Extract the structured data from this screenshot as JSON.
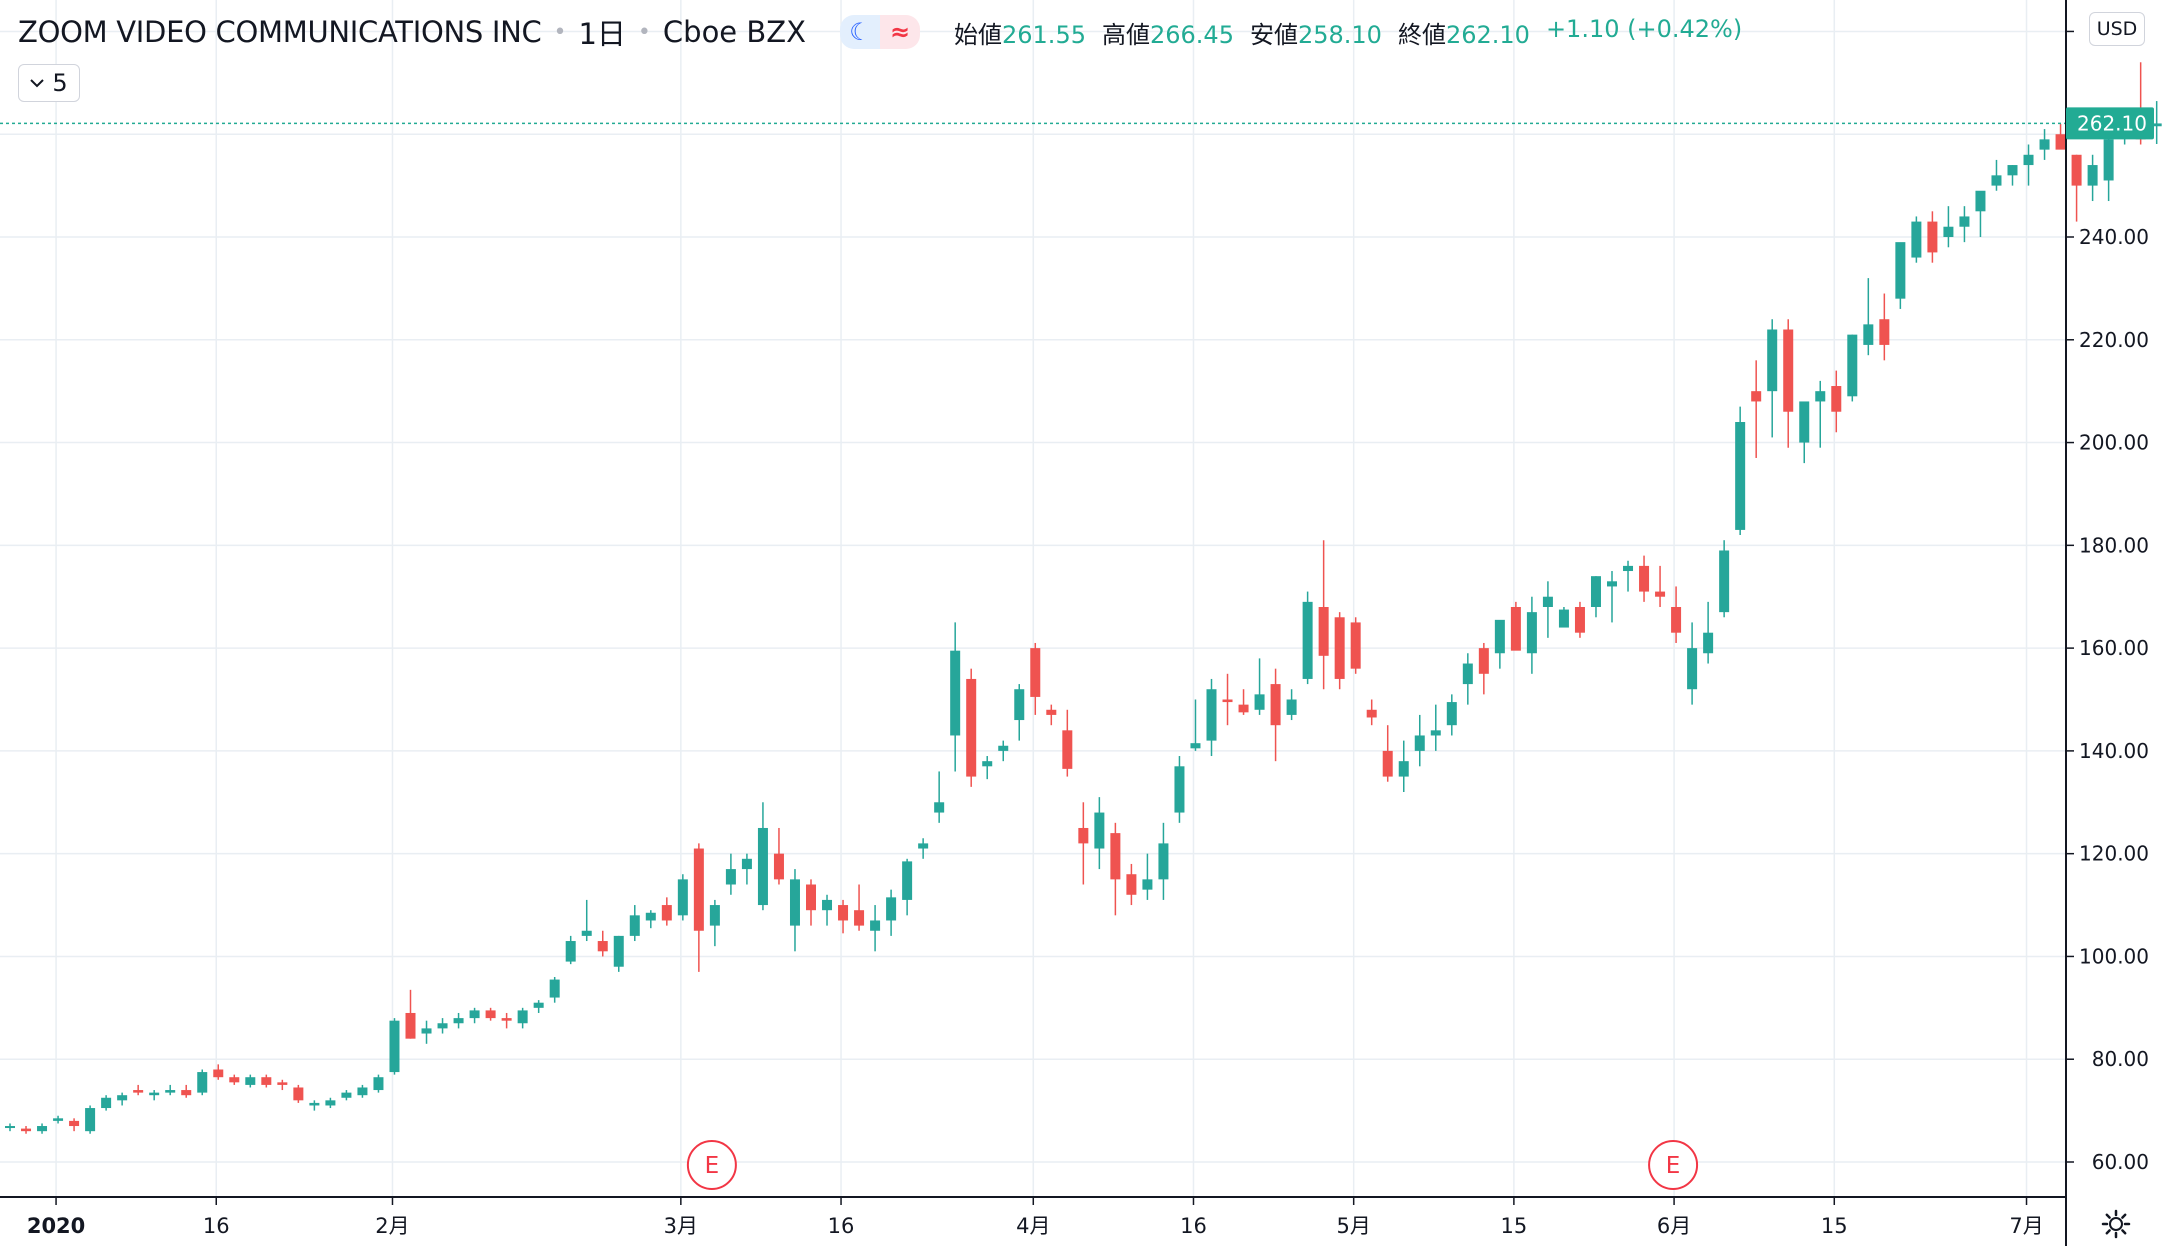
{
  "header": {
    "symbol_name": "ZOOM VIDEO COMMUNICATIONS INC",
    "interval": "1日",
    "exchange": "Cboe BZX",
    "mode_icons": [
      "moon-icon",
      "wave-icon"
    ],
    "ohlc": [
      {
        "label": "始値",
        "value": "261.55"
      },
      {
        "label": "高値",
        "value": "266.45"
      },
      {
        "label": "安値",
        "value": "258.10"
      },
      {
        "label": "終値",
        "value": "262.10"
      }
    ],
    "change": "+1.10 (+0.42%)"
  },
  "toolbar": {
    "interval_count": "5",
    "currency": "USD"
  },
  "last_price_label": "262.10",
  "earnings_marker": "E",
  "colors": {
    "up": "#26a69a",
    "down": "#ef5350",
    "grid": "#e9eef3",
    "axis": "#131722",
    "last_price": "#22ab94"
  },
  "chart_data": {
    "type": "candlestick",
    "y_axis": {
      "min": 55,
      "max": 285,
      "ticks": [
        "60.00",
        "80.00",
        "100.00",
        "120.00",
        "140.00",
        "160.00",
        "180.00",
        "200.00",
        "220.00",
        "240.00"
      ]
    },
    "x_axis": {
      "labels": [
        {
          "text": "2020",
          "index": 3,
          "bold": true
        },
        {
          "text": "16",
          "index": 13
        },
        {
          "text": "2月",
          "index": 24
        },
        {
          "text": "3月",
          "index": 42
        },
        {
          "text": "16",
          "index": 52
        },
        {
          "text": "4月",
          "index": 64
        },
        {
          "text": "16",
          "index": 74
        },
        {
          "text": "5月",
          "index": 84
        },
        {
          "text": "15",
          "index": 94
        },
        {
          "text": "6月",
          "index": 104
        },
        {
          "text": "15",
          "index": 114
        },
        {
          "text": "7月",
          "index": 126
        }
      ]
    },
    "earnings_indices": [
      44,
      104
    ],
    "last_price": 262.1,
    "ohlc": [
      [
        67,
        67.5,
        66,
        67
      ],
      [
        66.5,
        67,
        65.5,
        66
      ],
      [
        66,
        67.5,
        65.5,
        67
      ],
      [
        68,
        69,
        67.5,
        68.5
      ],
      [
        68,
        68.5,
        66,
        67
      ],
      [
        66,
        71,
        65.5,
        70.5
      ],
      [
        70.5,
        73,
        70,
        72.5
      ],
      [
        72,
        73.5,
        71,
        73
      ],
      [
        74,
        75,
        73,
        73.5
      ],
      [
        73,
        74,
        72,
        73.5
      ],
      [
        73.5,
        75,
        73,
        74
      ],
      [
        74,
        75,
        72.5,
        73
      ],
      [
        73.5,
        78,
        73,
        77.5
      ],
      [
        78,
        79,
        76,
        76.5
      ],
      [
        76.5,
        77,
        75,
        75.5
      ],
      [
        75,
        77,
        74.5,
        76.5
      ],
      [
        76.5,
        77,
        74.5,
        75
      ],
      [
        75.5,
        76,
        74,
        75
      ],
      [
        74.5,
        75,
        71.5,
        72
      ],
      [
        71,
        72,
        70,
        71.5
      ],
      [
        71,
        72.5,
        70.5,
        72
      ],
      [
        72.5,
        74,
        72,
        73.5
      ],
      [
        73,
        75,
        72.5,
        74.5
      ],
      [
        74,
        77,
        73.5,
        76.5
      ],
      [
        77.5,
        88,
        77,
        87.5
      ],
      [
        89,
        93.5,
        84,
        84
      ],
      [
        85,
        87.5,
        83,
        86
      ],
      [
        86,
        88,
        85,
        87
      ],
      [
        87,
        89,
        86,
        88
      ],
      [
        88,
        90,
        87,
        89.5
      ],
      [
        89.5,
        90,
        87.5,
        88
      ],
      [
        88,
        89,
        86,
        87.5
      ],
      [
        87,
        90,
        86,
        89.5
      ],
      [
        90,
        91.5,
        89,
        91
      ],
      [
        92,
        96,
        91,
        95.5
      ],
      [
        99,
        104,
        98.5,
        103
      ],
      [
        104,
        111,
        103,
        105
      ],
      [
        103,
        105,
        100,
        101
      ],
      [
        98,
        104,
        97,
        104
      ],
      [
        104,
        110,
        103,
        108
      ],
      [
        107,
        109,
        105.5,
        108.5
      ],
      [
        110,
        111.5,
        106,
        107
      ],
      [
        108,
        116,
        107,
        115
      ],
      [
        121,
        122,
        97,
        105
      ],
      [
        106,
        111,
        102,
        110
      ],
      [
        114,
        120,
        112,
        117
      ],
      [
        117,
        120,
        114,
        119
      ],
      [
        110,
        130,
        109,
        125
      ],
      [
        120,
        125,
        114,
        115
      ],
      [
        106,
        117,
        101,
        115
      ],
      [
        114,
        115,
        106,
        109
      ],
      [
        109,
        112,
        106,
        111
      ],
      [
        110,
        111,
        104.5,
        107
      ],
      [
        109,
        114,
        105,
        106
      ],
      [
        105,
        110,
        101,
        107
      ],
      [
        107,
        113,
        104,
        111.5
      ],
      [
        111,
        119,
        108,
        118.5
      ],
      [
        121,
        123,
        119,
        122
      ],
      [
        128,
        136,
        126,
        130
      ],
      [
        143,
        165,
        136,
        159.5
      ],
      [
        154,
        156,
        133,
        135
      ],
      [
        137,
        139,
        134.5,
        138
      ],
      [
        140,
        142,
        138,
        141
      ],
      [
        146,
        153,
        142,
        152
      ],
      [
        160,
        161,
        147,
        150.5
      ],
      [
        148,
        149,
        145,
        147
      ],
      [
        144,
        148,
        135,
        136.5
      ],
      [
        125,
        130,
        114,
        122
      ],
      [
        121,
        131,
        117,
        128
      ],
      [
        124,
        126,
        108,
        115
      ],
      [
        116,
        118,
        110,
        112
      ],
      [
        113,
        120,
        111,
        115
      ],
      [
        115,
        126,
        111,
        122
      ],
      [
        128,
        139,
        126,
        137
      ],
      [
        140.5,
        150,
        140,
        141.5
      ],
      [
        142,
        154,
        139,
        152
      ],
      [
        150,
        155,
        145,
        149.5
      ],
      [
        149,
        152,
        147,
        147.5
      ],
      [
        148,
        158,
        147,
        151
      ],
      [
        153,
        156,
        138,
        145
      ],
      [
        147,
        152,
        146,
        150
      ],
      [
        154,
        171,
        153,
        169
      ],
      [
        168,
        181,
        152,
        158.5
      ],
      [
        166,
        167,
        152,
        154
      ],
      [
        165,
        166,
        155,
        156
      ],
      [
        148,
        150,
        145,
        146.5
      ],
      [
        140,
        145,
        134,
        135
      ],
      [
        135,
        142,
        132,
        138
      ],
      [
        140,
        147,
        137,
        143
      ],
      [
        143,
        149,
        140,
        144
      ],
      [
        145,
        151,
        143,
        149.5
      ],
      [
        153,
        159,
        149,
        157
      ],
      [
        160,
        161,
        151,
        155
      ],
      [
        159,
        164,
        156,
        165.5
      ],
      [
        168,
        169,
        161,
        159.5
      ],
      [
        159,
        170,
        155,
        167
      ],
      [
        168,
        173,
        162,
        170
      ],
      [
        164,
        168,
        165,
        167.5
      ],
      [
        168,
        169,
        162,
        163
      ],
      [
        168,
        174,
        166,
        174
      ],
      [
        172,
        175,
        165,
        173
      ],
      [
        175,
        177,
        171,
        176
      ],
      [
        176,
        178,
        169,
        171
      ],
      [
        171,
        176,
        168,
        170
      ],
      [
        168,
        172,
        161,
        163
      ],
      [
        152,
        165,
        149,
        160
      ],
      [
        159,
        169,
        157,
        163
      ],
      [
        167,
        181,
        166,
        179
      ],
      [
        183,
        207,
        182,
        204
      ],
      [
        210,
        216,
        197,
        208
      ],
      [
        210,
        224,
        201,
        222
      ],
      [
        222,
        224,
        199,
        206
      ],
      [
        200,
        207,
        196,
        208
      ],
      [
        208,
        212,
        199,
        210
      ],
      [
        211,
        214,
        202,
        206
      ],
      [
        209,
        221,
        208,
        221
      ],
      [
        219,
        232,
        217,
        223
      ],
      [
        224,
        229,
        216,
        219
      ],
      [
        228,
        238,
        226,
        239
      ],
      [
        236,
        244,
        235,
        243
      ],
      [
        243,
        245,
        235,
        237
      ],
      [
        240,
        246,
        238,
        242
      ],
      [
        242,
        246,
        239,
        244
      ],
      [
        245,
        247,
        240,
        249
      ],
      [
        250,
        255,
        249,
        252
      ],
      [
        252,
        254,
        250,
        254
      ],
      [
        254,
        258,
        250,
        256
      ],
      [
        257,
        261,
        255,
        259
      ],
      [
        260,
        262,
        258,
        257
      ],
      [
        256,
        256,
        243,
        250
      ],
      [
        250,
        256,
        247,
        254
      ],
      [
        251,
        262,
        247,
        259
      ],
      [
        260,
        263,
        258,
        262
      ],
      [
        263,
        274,
        258,
        259
      ],
      [
        261.55,
        266.45,
        258.1,
        262.1
      ]
    ]
  }
}
